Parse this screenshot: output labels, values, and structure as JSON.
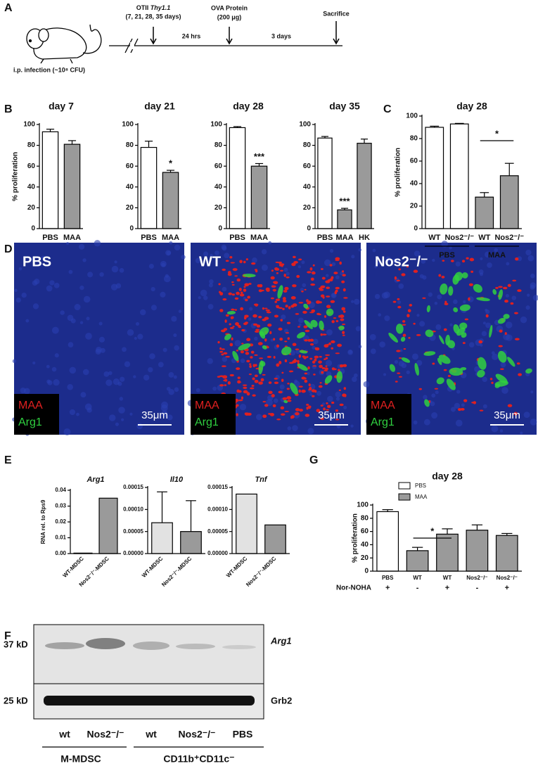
{
  "figure": {
    "panel_labels": [
      "A",
      "B",
      "C",
      "D",
      "E",
      "F",
      "G"
    ],
    "timeline": {
      "injection": "i.p. infection (~10⁸ CFU)",
      "events": [
        {
          "label": "OTII",
          "label_italic": "Thy1.1",
          "detail": "(7, 21, 28, 35 days)"
        },
        {
          "label": "OVA Protein",
          "detail": "(200 μg)"
        },
        {
          "label": "Sacrifice"
        }
      ],
      "intervals": [
        "24 hrs",
        "3 days"
      ]
    },
    "microscopy": {
      "panels": [
        {
          "title": "PBS"
        },
        {
          "title": "WT"
        },
        {
          "title": "Nos2⁻/⁻"
        }
      ],
      "stain_labels": [
        "MAA",
        "Arg1"
      ],
      "scale_bar": "35μm"
    },
    "blot": {
      "markers": [
        "37 kD",
        "25 kD"
      ],
      "proteins": [
        "Arg1",
        "Grb2"
      ],
      "lanes": [
        "wt",
        "Nos2⁻/⁻",
        "wt",
        "Nos2⁻/⁻",
        "PBS"
      ],
      "groups": [
        "M-MDSC",
        "CD11b⁺CD11c⁻"
      ]
    }
  },
  "chart_data": [
    {
      "type": "bar",
      "title": "day 7",
      "ylabel": "% proliferation",
      "categories": [
        "PBS",
        "MAA"
      ],
      "values": [
        93,
        81
      ],
      "errors": [
        2.5,
        3.5
      ],
      "colors": [
        "#ffffff",
        "#9a9a9a"
      ],
      "ylim": [
        0,
        100
      ],
      "yticks": [
        0,
        20,
        40,
        60,
        80,
        100
      ]
    },
    {
      "type": "bar",
      "title": "day 21",
      "categories": [
        "PBS",
        "MAA"
      ],
      "values": [
        78,
        54
      ],
      "errors": [
        6,
        2
      ],
      "colors": [
        "#ffffff",
        "#9a9a9a"
      ],
      "significance": [
        null,
        "*"
      ],
      "ylim": [
        0,
        100
      ],
      "yticks": [
        0,
        20,
        40,
        60,
        80,
        100
      ]
    },
    {
      "type": "bar",
      "title": "day 28",
      "categories": [
        "PBS",
        "MAA"
      ],
      "values": [
        97,
        60
      ],
      "errors": [
        1,
        2.5
      ],
      "colors": [
        "#ffffff",
        "#9a9a9a"
      ],
      "significance": [
        null,
        "***"
      ],
      "ylim": [
        0,
        100
      ],
      "yticks": [
        0,
        20,
        40,
        60,
        80,
        100
      ]
    },
    {
      "type": "bar",
      "title": "day 35",
      "categories": [
        "PBS",
        "MAA",
        "HK"
      ],
      "values": [
        87,
        18,
        82
      ],
      "errors": [
        1.5,
        1.5,
        4
      ],
      "colors": [
        "#ffffff",
        "#9a9a9a",
        "#9a9a9a"
      ],
      "significance": [
        null,
        "***",
        null
      ],
      "ylim": [
        0,
        100
      ],
      "yticks": [
        0,
        20,
        40,
        60,
        80,
        100
      ]
    },
    {
      "type": "bar",
      "title": "day 28",
      "ylabel": "% proliferation",
      "categories": [
        "WT",
        "Nos2⁻/⁻",
        "WT",
        "Nos2⁻/⁻"
      ],
      "groups": [
        "PBS",
        "MAA"
      ],
      "values": [
        90,
        93,
        28,
        47
      ],
      "errors": [
        1,
        0.5,
        4,
        11
      ],
      "colors": [
        "#ffffff",
        "#ffffff",
        "#9a9a9a",
        "#9a9a9a"
      ],
      "bracket": "*",
      "ylim": [
        0,
        100
      ],
      "yticks": [
        0,
        20,
        40,
        60,
        80,
        100
      ]
    },
    {
      "type": "bar",
      "title": "Arg1",
      "ylabel": "RNA rel. to Rps9",
      "categories": [
        "WT-MDSC",
        "Nos2⁻/⁻-MDSC"
      ],
      "values": [
        0.0003,
        0.035
      ],
      "colors": [
        "#e2e2e2",
        "#9a9a9a"
      ],
      "ylim": [
        0,
        0.04
      ],
      "yticks": [
        {
          "value": 0,
          "label": "0.00"
        },
        0.01,
        0.02,
        0.03,
        0.04
      ]
    },
    {
      "type": "bar",
      "title": "Il10",
      "categories": [
        "WT-MDSC",
        "Nos2⁻/⁻-MDSC"
      ],
      "values": [
        7e-05,
        5e-05
      ],
      "errors": [
        7e-05,
        7e-05
      ],
      "colors": [
        "#e2e2e2",
        "#9a9a9a"
      ],
      "ylim": [
        0,
        0.00015
      ],
      "yticks": [
        {
          "value": 0,
          "label": "0.00000"
        },
        5e-05,
        {
          "value": 0.0001,
          "label": "0.00010"
        },
        0.00015
      ]
    },
    {
      "type": "bar",
      "title": "Tnf",
      "categories": [
        "WT-MDSC",
        "Nos2⁻/⁻-MDSC"
      ],
      "values": [
        0.000135,
        6.5e-05
      ],
      "colors": [
        "#e2e2e2",
        "#9a9a9a"
      ],
      "ylim": [
        0,
        0.00015
      ],
      "yticks": [
        {
          "value": 0,
          "label": "0.00000"
        },
        5e-05,
        {
          "value": 0.0001,
          "label": "0.00010"
        },
        0.00015
      ]
    },
    {
      "type": "bar",
      "title": "day 28",
      "ylabel": "% proliferation",
      "categories": [
        "PBS",
        "WT",
        "WT",
        "Nos2⁻/⁻",
        "Nos2⁻/⁻"
      ],
      "series": [
        {
          "name": "PBS",
          "color": "#ffffff",
          "values": [
            90,
            null,
            null,
            null,
            null
          ],
          "errors": [
            3,
            null,
            null,
            null,
            null
          ]
        },
        {
          "name": "MAA",
          "color": "#9a9a9a",
          "values": [
            null,
            31,
            56,
            62,
            54
          ],
          "errors": [
            null,
            5,
            8,
            8,
            3
          ]
        }
      ],
      "bracket": "*",
      "treatment_label": "Nor-NOHA",
      "treatment": [
        "+",
        "-",
        "+",
        "-",
        "+"
      ],
      "ylim": [
        0,
        100
      ],
      "yticks": [
        0,
        20,
        40,
        60,
        80,
        100
      ]
    }
  ]
}
